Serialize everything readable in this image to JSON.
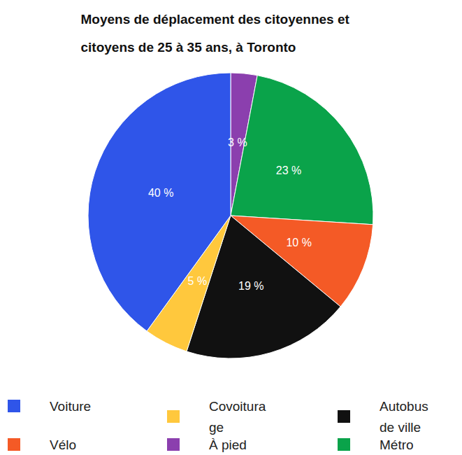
{
  "chart_data": {
    "type": "pie",
    "title": "Moyens de déplacement des citoyennes et citoyens de 25 à 35 ans, à Toronto",
    "categories": [
      "À pied",
      "Métro",
      "Vélo",
      "Autobus de ville",
      "Covoiturage",
      "Voiture"
    ],
    "values": [
      3,
      23,
      10,
      19,
      5,
      40
    ],
    "value_labels": [
      "3 %",
      "23 %",
      "10 %",
      "19 %",
      "5 %",
      "40 %"
    ],
    "colors": [
      "#8b3fae",
      "#0aa34a",
      "#f45a26",
      "#111111",
      "#ffc83d",
      "#2f55e9"
    ],
    "data_labels": true,
    "legend": "bottom"
  }
}
